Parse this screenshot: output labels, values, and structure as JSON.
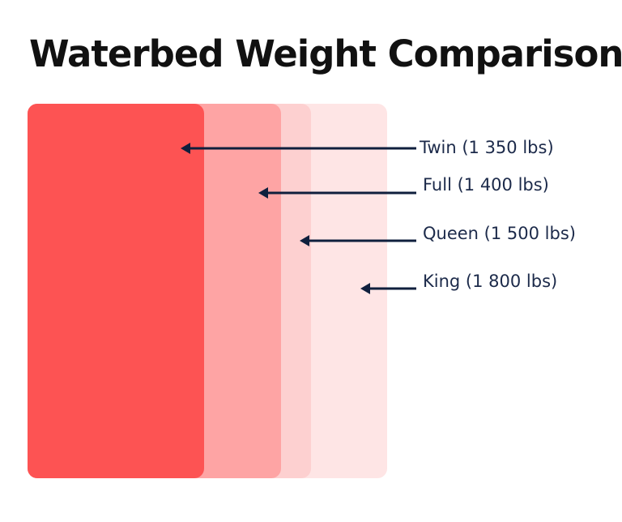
{
  "title": "Waterbed Weight Comparisons",
  "beds": [
    {
      "name": "King",
      "label": "King (1 800 lbs)",
      "color": "#fee5e5"
    },
    {
      "name": "Queen",
      "label": "Queen (1 500 lbs)",
      "color": "#fdd0d0"
    },
    {
      "name": "Full",
      "label": "Full (1 400 lbs)",
      "color": "#fea4a4"
    },
    {
      "name": "Twin",
      "label": "Twin (1 350 lbs)",
      "color": "#fd5353"
    }
  ],
  "arrow_color": "#0f1f3d"
}
